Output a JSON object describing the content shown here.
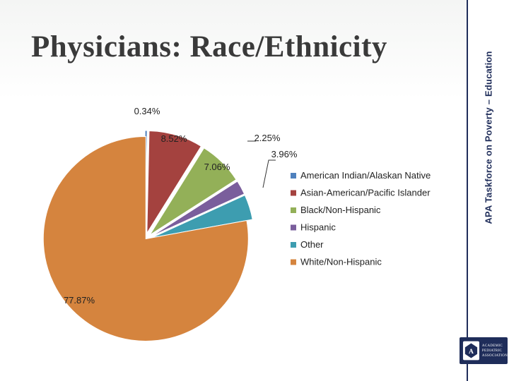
{
  "slide": {
    "title": "Physicians:  Race/Ethnicity",
    "side_text": "APA Taskforce on Poverty – Education",
    "logo": {
      "text": [
        "ACADEMIC",
        "PEDIATRIC",
        "ASSOCIATION"
      ],
      "accent": "#1f2d5a"
    }
  },
  "chart_data": {
    "type": "pie",
    "exploded": true,
    "slices": [
      {
        "label": "American Indian/Alaskan Native",
        "value": 0.34,
        "display": "0.34%",
        "color": "#4f81bd"
      },
      {
        "label": "Asian-American/Pacific Islander",
        "value": 8.52,
        "display": "8.52%",
        "color": "#a4423f"
      },
      {
        "label": "Black/Non-Hispanic",
        "value": 7.06,
        "display": "7.06%",
        "color": "#93b058"
      },
      {
        "label": "Hispanic",
        "value": 2.25,
        "display": "2.25%",
        "color": "#7a5e9c"
      },
      {
        "label": "Other",
        "value": 3.96,
        "display": "3.96%",
        "color": "#3d9db0"
      },
      {
        "label": "White/Non-Hispanic",
        "value": 77.87,
        "display": "77.87%",
        "color": "#d5843e"
      }
    ],
    "legend_position": "right"
  }
}
